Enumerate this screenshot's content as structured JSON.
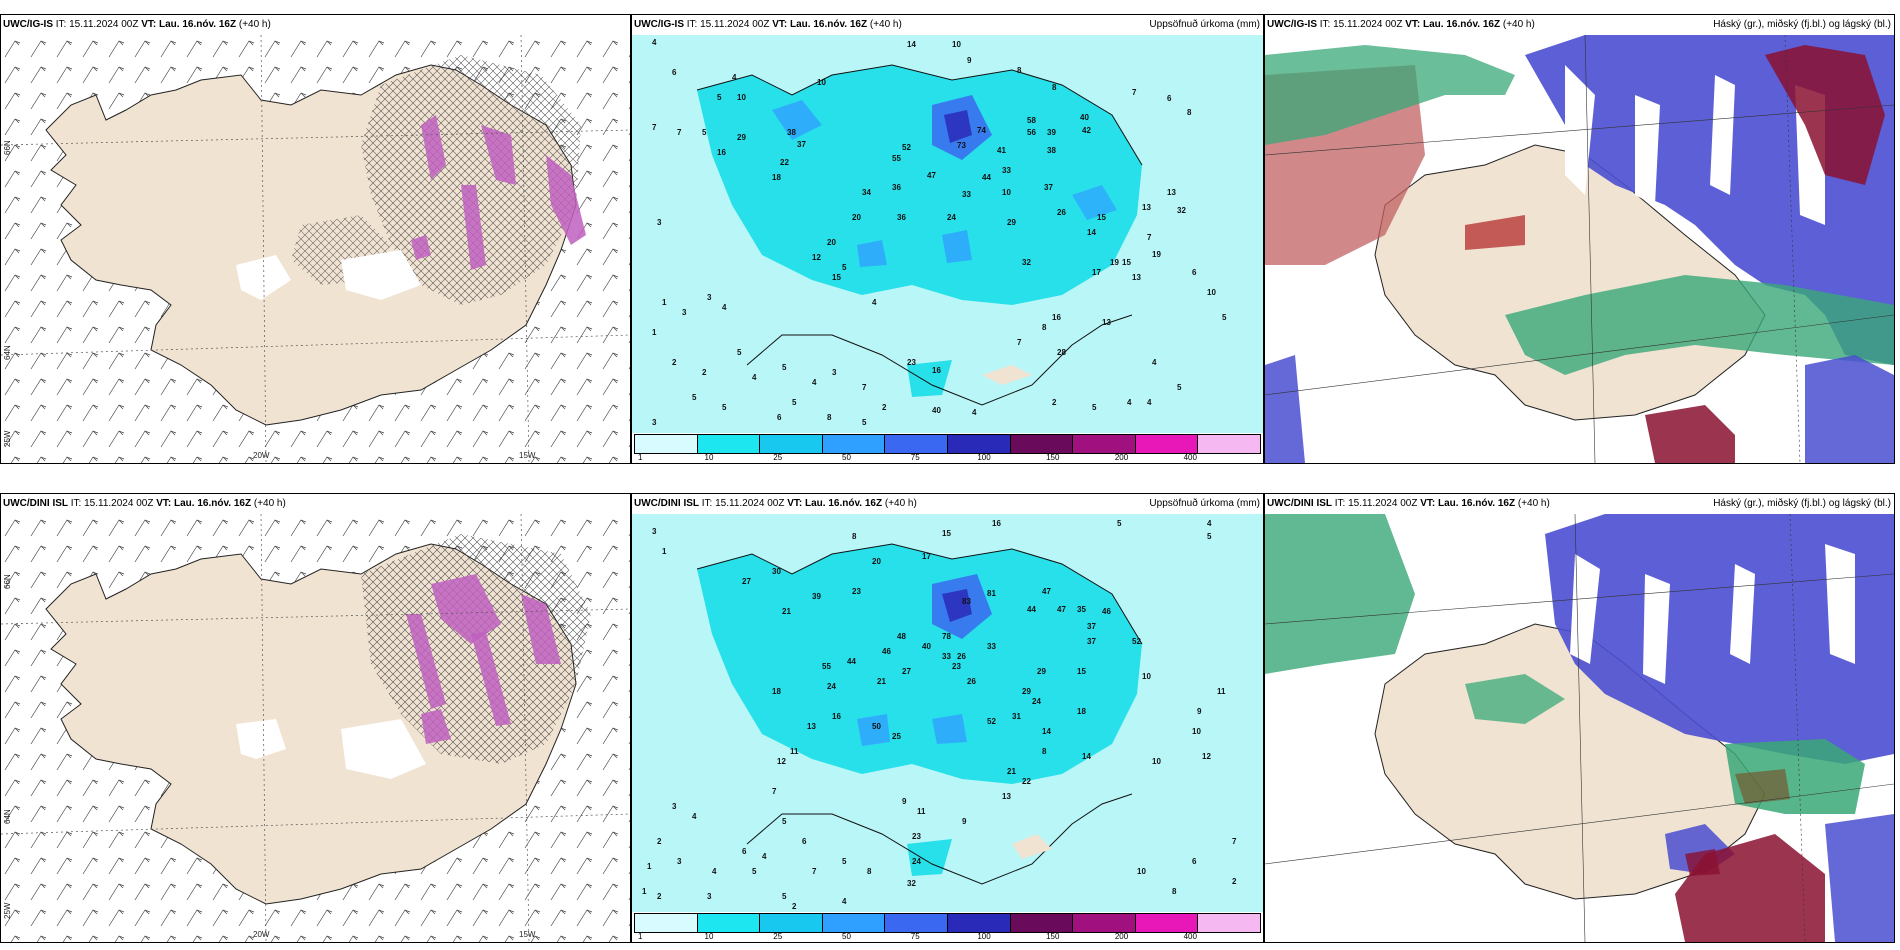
{
  "rows": [
    {
      "model": "UWC/IG-IS",
      "it_label": "IT:",
      "it_value": "15.11.2024 00Z",
      "vt_label": "VT:",
      "vt_value": "Lau. 16.nóv. 16Z",
      "lead": "(+40 h)"
    },
    {
      "model": "UWC/DINI ISL",
      "it_label": "IT:",
      "it_value": "15.11.2024 00Z",
      "vt_label": "VT:",
      "vt_value": "Lau. 16.nóv. 16Z",
      "lead": "(+40 h)"
    }
  ],
  "precip_title": "Uppsöfnuð úrkoma (mm)",
  "cloud_title": "Háský (gr.), miðský (fj.bl.) og lágský (bl.)",
  "axis_labels": {
    "lat_66": "66N",
    "lat_64": "64N",
    "lon_25": "25W",
    "lon_20": "20W",
    "lon_15": "15W"
  },
  "colorbar": {
    "ticks": [
      "1",
      "10",
      "25",
      "50",
      "75",
      "100",
      "150",
      "200",
      "400"
    ],
    "colors": [
      "#d8fbff",
      "#1ee6f0",
      "#18c8ee",
      "#2fa0ff",
      "#3a68f0",
      "#2a2ab8",
      "#6a0a5a",
      "#a0107e",
      "#e818b8",
      "#f6b8f0"
    ]
  },
  "precip_values_top": [
    "4",
    "6",
    "10",
    "14",
    "10",
    "9",
    "8",
    "8",
    "7",
    "6",
    "8",
    "7",
    "7",
    "5",
    "4",
    "5",
    "10",
    "16",
    "29",
    "38",
    "37",
    "22",
    "52",
    "73",
    "74",
    "58",
    "56",
    "40",
    "42",
    "39",
    "38",
    "36",
    "34",
    "55",
    "47",
    "41",
    "33",
    "37",
    "44",
    "33",
    "29",
    "26",
    "15",
    "19",
    "13",
    "14",
    "32",
    "13",
    "7",
    "6",
    "10",
    "5",
    "4",
    "5",
    "4",
    "20",
    "36",
    "24",
    "18",
    "20",
    "15",
    "15",
    "13",
    "32",
    "19",
    "17",
    "16",
    "28",
    "13",
    "10",
    "8",
    "7",
    "12",
    "5",
    "4",
    "23",
    "16",
    "40",
    "3",
    "1",
    "2",
    "2",
    "1",
    "3",
    "3",
    "4",
    "5",
    "4",
    "5",
    "4",
    "3",
    "7",
    "2",
    "5",
    "5",
    "6",
    "5",
    "8",
    "5",
    "3",
    "4",
    "2",
    "5",
    "4"
  ],
  "precip_values_bottom": [
    "3",
    "8",
    "15",
    "16",
    "5",
    "4",
    "5",
    "1",
    "20",
    "17",
    "27",
    "21",
    "23",
    "30",
    "39",
    "47",
    "44",
    "47",
    "35",
    "46",
    "37",
    "37",
    "29",
    "52",
    "48",
    "40",
    "83",
    "81",
    "78",
    "33",
    "26",
    "29",
    "15",
    "18",
    "10",
    "9",
    "10",
    "11",
    "12",
    "10",
    "14",
    "44",
    "24",
    "21",
    "16",
    "13",
    "27",
    "33",
    "46",
    "55",
    "50",
    "52",
    "31",
    "25",
    "24",
    "26",
    "23",
    "21",
    "18",
    "14",
    "8",
    "12",
    "11",
    "9",
    "7",
    "5",
    "4",
    "6",
    "2",
    "3",
    "4",
    "23",
    "24",
    "32",
    "11",
    "22",
    "13",
    "9",
    "6",
    "5",
    "4",
    "3",
    "2",
    "1",
    "1",
    "7",
    "5",
    "8",
    "3",
    "5",
    "4",
    "2",
    "8",
    "10",
    "6",
    "2",
    "7"
  ]
}
